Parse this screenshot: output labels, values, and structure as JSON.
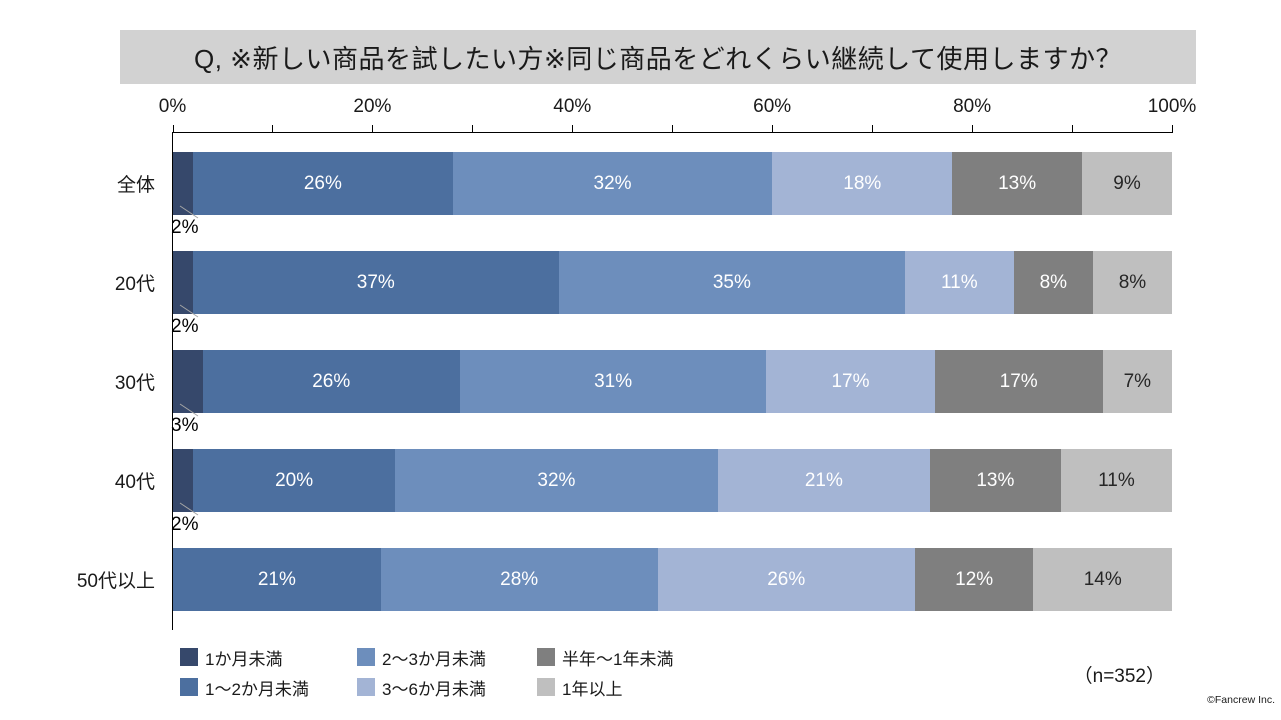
{
  "meta": {
    "sample_size": "（n=352）",
    "credit": "©Fancrew Inc."
  },
  "colors": {
    "title_background": "#D2D2D2",
    "axis": "#000000",
    "leader_line": "#A6A6A6",
    "background": "#FFFFFF"
  },
  "chart_data": {
    "type": "bar",
    "variant": "horizontal-stacked-100pct",
    "title": "Q, ※新しい商品を試したい方※同じ商品をどれくらい継続して使用しますか？",
    "categories": [
      "全体",
      "20代",
      "30代",
      "40代",
      "50代以上"
    ],
    "series": [
      {
        "name": "1か月未満",
        "color": "#36486B",
        "label_color": "#FFFFFF",
        "label_position": "below",
        "values": [
          2,
          2,
          3,
          2,
          0
        ]
      },
      {
        "name": "1〜2か月未満",
        "color": "#4C6F9F",
        "label_color": "#FFFFFF",
        "label_position": "inside",
        "values": [
          26,
          37,
          26,
          20,
          21
        ]
      },
      {
        "name": "2〜3か月未満",
        "color": "#6D8EBC",
        "label_color": "#FFFFFF",
        "label_position": "inside",
        "values": [
          32,
          35,
          31,
          32,
          28
        ]
      },
      {
        "name": "3〜6か月未満",
        "color": "#A3B4D5",
        "label_color": "#FFFFFF",
        "label_position": "inside",
        "values": [
          18,
          11,
          17,
          21,
          26
        ]
      },
      {
        "name": "半年〜1年未満",
        "color": "#7F7F7F",
        "label_color": "#FFFFFF",
        "label_position": "inside",
        "values": [
          13,
          8,
          17,
          13,
          12
        ]
      },
      {
        "name": "1年以上",
        "color": "#BFBFBF",
        "label_color": "#262626",
        "label_position": "inside",
        "values": [
          9,
          8,
          7,
          11,
          14
        ]
      }
    ],
    "x_axis": {
      "range": [
        0,
        100
      ],
      "tick_labels": [
        "0%",
        "20%",
        "40%",
        "60%",
        "80%",
        "100%"
      ],
      "minor_tick_step_pct": 10,
      "unit": "%"
    },
    "legend": {
      "position": "bottom-left",
      "rows": [
        [
          "1か月未満",
          "2〜3か月未満",
          "半年〜1年未満"
        ],
        [
          "1〜2か月未満",
          "3〜6か月未満",
          "1年以上"
        ]
      ]
    }
  }
}
